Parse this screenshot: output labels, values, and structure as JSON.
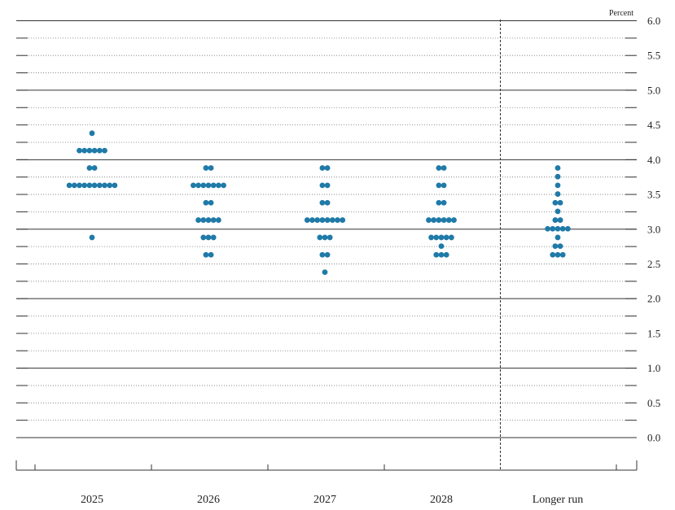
{
  "chart_data": {
    "type": "scatter",
    "subtype": "dot-plot",
    "unit_label": "Percent",
    "y_axis_side": "right",
    "ylim": [
      0,
      6
    ],
    "y_ticks": [
      "0.0",
      "0.5",
      "1.0",
      "1.5",
      "2.0",
      "2.5",
      "3.0",
      "3.5",
      "4.0",
      "4.5",
      "5.0",
      "5.5",
      "6.0"
    ],
    "y_tick_values": [
      0,
      0.5,
      1,
      1.5,
      2,
      2.5,
      3,
      3.5,
      4,
      4.5,
      5,
      5.5,
      6
    ],
    "grid": "major-solid-minor-dotted",
    "separator_before": "Longer run",
    "dot_color": "#1f7aa8",
    "categories": [
      "2025",
      "2026",
      "2027",
      "2028",
      "Longer run"
    ],
    "series": [
      {
        "category": "2025",
        "points": [
          {
            "y": 4.375,
            "count": 1
          },
          {
            "y": 4.125,
            "count": 6
          },
          {
            "y": 3.875,
            "count": 2
          },
          {
            "y": 3.625,
            "count": 10
          },
          {
            "y": 2.875,
            "count": 1
          }
        ]
      },
      {
        "category": "2026",
        "points": [
          {
            "y": 3.875,
            "count": 2
          },
          {
            "y": 3.625,
            "count": 7
          },
          {
            "y": 3.375,
            "count": 2
          },
          {
            "y": 3.125,
            "count": 5
          },
          {
            "y": 2.875,
            "count": 3
          },
          {
            "y": 2.625,
            "count": 2
          }
        ]
      },
      {
        "category": "2027",
        "points": [
          {
            "y": 3.875,
            "count": 2
          },
          {
            "y": 3.625,
            "count": 2
          },
          {
            "y": 3.375,
            "count": 2
          },
          {
            "y": 3.125,
            "count": 8
          },
          {
            "y": 2.875,
            "count": 3
          },
          {
            "y": 2.625,
            "count": 2
          },
          {
            "y": 2.375,
            "count": 1
          }
        ]
      },
      {
        "category": "2028",
        "points": [
          {
            "y": 3.875,
            "count": 2
          },
          {
            "y": 3.625,
            "count": 2
          },
          {
            "y": 3.375,
            "count": 2
          },
          {
            "y": 3.125,
            "count": 6
          },
          {
            "y": 2.875,
            "count": 5
          },
          {
            "y": 2.75,
            "count": 1
          },
          {
            "y": 2.625,
            "count": 3
          }
        ]
      },
      {
        "category": "Longer run",
        "points": [
          {
            "y": 3.875,
            "count": 1
          },
          {
            "y": 3.75,
            "count": 1
          },
          {
            "y": 3.625,
            "count": 1
          },
          {
            "y": 3.5,
            "count": 1
          },
          {
            "y": 3.375,
            "count": 2
          },
          {
            "y": 3.25,
            "count": 1
          },
          {
            "y": 3.125,
            "count": 2
          },
          {
            "y": 3.0,
            "count": 5
          },
          {
            "y": 2.875,
            "count": 1
          },
          {
            "y": 2.75,
            "count": 2
          },
          {
            "y": 2.625,
            "count": 3
          }
        ]
      }
    ]
  }
}
